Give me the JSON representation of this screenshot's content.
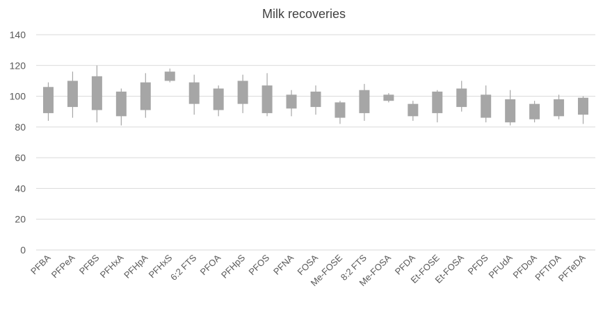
{
  "chart_data": {
    "type": "box",
    "title": "Milk recoveries",
    "xlabel": "",
    "ylabel": "",
    "ylim": [
      0,
      140
    ],
    "yticks": [
      0,
      20,
      40,
      60,
      80,
      100,
      120,
      140
    ],
    "grid": true,
    "legend": "none",
    "colors": {
      "box": "#a6a6a6",
      "whisker": "#a6a6a6",
      "grid": "#d9d9d9",
      "text": "#595959"
    },
    "categories": [
      "PFBA",
      "PFPeA",
      "PFBS",
      "PFHxA",
      "PFHpA",
      "PFHxS",
      "6:2 FTS",
      "PFOA",
      "PFHpS",
      "PFOS",
      "PFNA",
      "FOSA",
      "Me-FOSE",
      "8:2 FTS",
      "Me-FOSA",
      "PFDA",
      "Et-FOSE",
      "Et-FOSA",
      "PFDS",
      "PFUdA",
      "PFDoA",
      "PFTrDA",
      "PFTeDA"
    ],
    "series": [
      {
        "low": [
          84,
          86,
          83,
          81,
          86,
          109,
          88,
          87,
          89,
          87,
          87,
          88,
          82,
          84,
          96,
          84,
          83,
          90,
          83,
          81,
          83,
          85,
          82
        ],
        "q1": [
          89,
          93,
          91,
          87,
          91,
          110,
          95,
          91,
          95,
          89,
          92,
          93,
          86,
          89,
          97,
          87,
          89,
          93,
          86,
          83,
          85,
          87,
          88
        ],
        "q3": [
          106,
          110,
          113,
          103,
          109,
          116,
          109,
          105,
          110,
          107,
          101,
          103,
          96,
          104,
          101,
          95,
          103,
          105,
          101,
          98,
          95,
          98,
          99
        ],
        "high": [
          109,
          116,
          120,
          105,
          115,
          118,
          114,
          107,
          114,
          115,
          104,
          107,
          97,
          108,
          102,
          97,
          104,
          110,
          107,
          104,
          97,
          101,
          100
        ]
      }
    ]
  }
}
